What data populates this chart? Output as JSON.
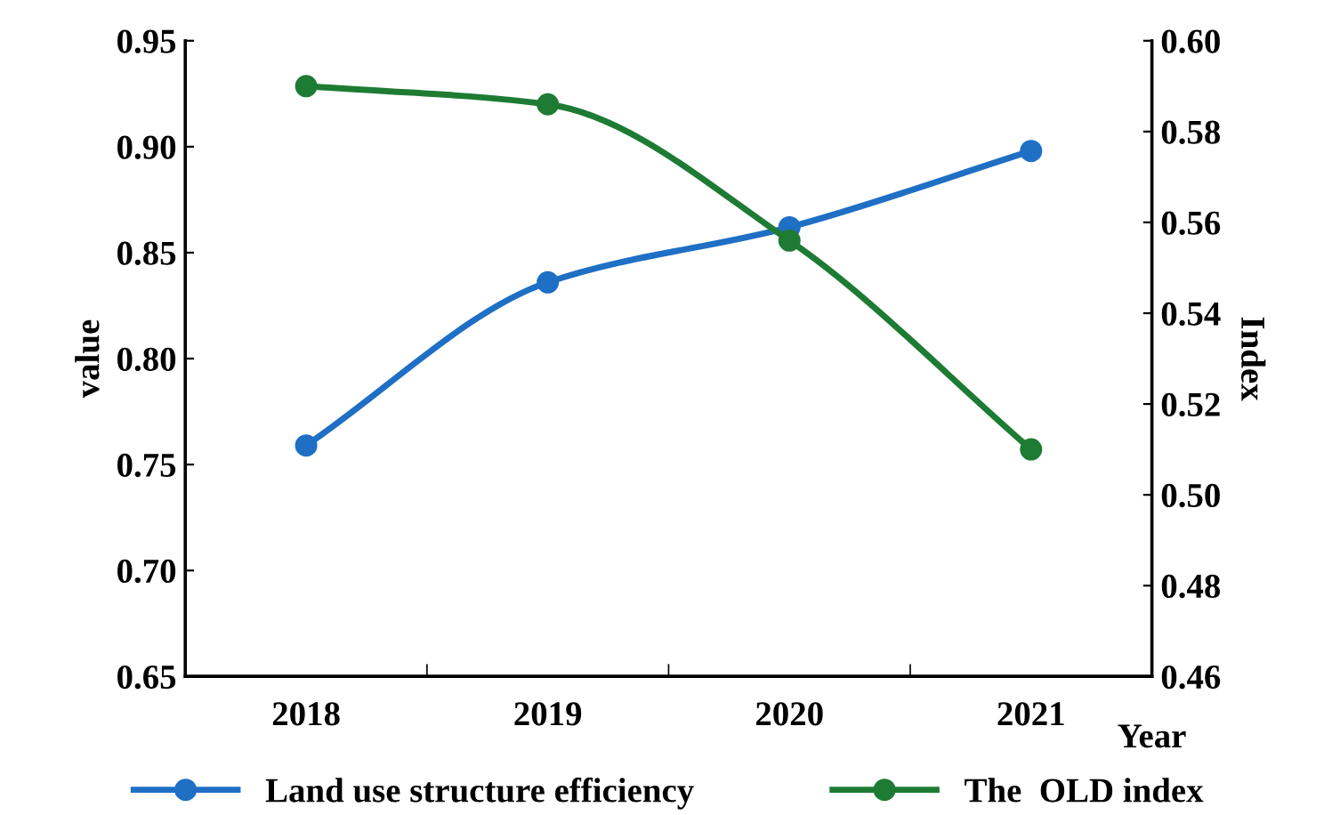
{
  "chart_data": {
    "type": "line",
    "categories": [
      "2018",
      "2019",
      "2020",
      "2021"
    ],
    "xlabel": "Year",
    "ylabel": "value",
    "y2label": "Index",
    "series": [
      {
        "name": "Land use structure efficiency",
        "color": "#1f6fc5",
        "values": [
          0.759,
          0.836,
          0.862,
          0.898
        ]
      },
      {
        "name": "The  OLD index",
        "color": "#1e7b34",
        "values": [
          0.59,
          0.586,
          0.556,
          0.51
        ],
        "axis": "y2"
      }
    ],
    "ylim": [
      0.65,
      0.95
    ],
    "yticks": [
      0.65,
      {
        "value": 0.7,
        "label": "0.70"
      },
      0.75,
      {
        "value": 0.8,
        "label": "0.80"
      },
      0.85,
      {
        "value": 0.9,
        "label": "0.90"
      },
      0.95
    ],
    "y2lim": [
      0.46,
      0.6
    ],
    "y2ticks": [
      0.46,
      0.48,
      {
        "value": 0.5,
        "label": "0.50"
      },
      0.52,
      0.54,
      0.56,
      0.58,
      {
        "value": 0.6,
        "label": "0.60"
      }
    ],
    "marker": "circle",
    "line_style": "solid",
    "grid": false,
    "legend": "bottom"
  }
}
